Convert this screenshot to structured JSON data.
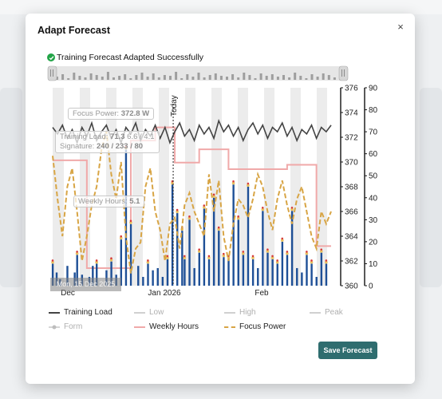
{
  "modal": {
    "title": "Adapt Forecast",
    "close_label": "×",
    "success_message": "Training Forecast Adapted Successfully",
    "save_button_label": "Save Forecast"
  },
  "colors": {
    "training_load": "#444444",
    "weekly_hours": "#f0a9a9",
    "focus_power": "#d8a545",
    "bars": "#1e4f96",
    "success": "#22a447",
    "save_button": "#2f6d6f"
  },
  "tooltips": {
    "focus_power_label": "Focus Power:",
    "focus_power_value": "372.8 W",
    "training_load_label": "Training Load:",
    "training_load_value": "71.3",
    "training_load_rest": "6.6 / 4.1",
    "signature_label": "Signature:",
    "signature_value": "240 / 233 / 80",
    "weekly_hours_label": "Weekly Hours:",
    "weekly_hours_value": "5.1",
    "date": "Mon, 15 Dec 2025",
    "today_marker": "Today"
  },
  "chart_data": {
    "type": "line",
    "x_ticks": [
      "Dec",
      "Jan 2026",
      "Feb"
    ],
    "y_axis_power": {
      "ticks": [
        360,
        362,
        364,
        366,
        368,
        370,
        372,
        374,
        376
      ],
      "range": [
        360,
        376
      ]
    },
    "y_axis_load": {
      "ticks": [
        0,
        10,
        20,
        30,
        40,
        50,
        60,
        70,
        80,
        90
      ],
      "range": [
        0,
        90
      ]
    },
    "legend": [
      {
        "name": "Training Load",
        "style": "line",
        "active": true
      },
      {
        "name": "Low",
        "style": "line",
        "active": false
      },
      {
        "name": "High",
        "style": "line",
        "active": false
      },
      {
        "name": "Peak",
        "style": "line",
        "active": false
      },
      {
        "name": "Form",
        "style": "dot",
        "active": false
      },
      {
        "name": "Weekly Hours",
        "style": "line",
        "active": true
      },
      {
        "name": "Focus Power",
        "style": "dash",
        "active": true
      }
    ],
    "series": [
      {
        "name": "Training Load",
        "axis": "load",
        "values": [
          72,
          69,
          73,
          67,
          71,
          65,
          72,
          68,
          74,
          66,
          70,
          73,
          67,
          71,
          65,
          72,
          69,
          74,
          66,
          71,
          68,
          73,
          67,
          72,
          65,
          70,
          74,
          68,
          71,
          66,
          73,
          69,
          72,
          67,
          75,
          70,
          73,
          68,
          72,
          66,
          71,
          74,
          69,
          73,
          67,
          72,
          70,
          74,
          68,
          72,
          66,
          71,
          69,
          73,
          67,
          72,
          70,
          73
        ]
      },
      {
        "name": "Weekly Hours",
        "axis": "load",
        "values": [
          57,
          57,
          57,
          57,
          57,
          57,
          57,
          8,
          8,
          8,
          8,
          8,
          8,
          8,
          8,
          8,
          66,
          66,
          66,
          66,
          66,
          72,
          72,
          72,
          72,
          56,
          56,
          56,
          56,
          56,
          62,
          62,
          62,
          62,
          62,
          62,
          53,
          53,
          53,
          53,
          53,
          53,
          53,
          53,
          53,
          53,
          53,
          53,
          55,
          55,
          55,
          55,
          55,
          55,
          18,
          18,
          18,
          18
        ]
      },
      {
        "name": "Focus Power",
        "axis": "power",
        "values": [
          370.5,
          367,
          364,
          368,
          369.5,
          366,
          362,
          364,
          366.5,
          368,
          371,
          372.5,
          369,
          367,
          370,
          364,
          361,
          363,
          363.5,
          368,
          369.5,
          366,
          364.5,
          362,
          365,
          365.5,
          363,
          366.5,
          367.5,
          366,
          365,
          364,
          369,
          366,
          368.5,
          364,
          362,
          365,
          367,
          366.5,
          365.5,
          367,
          369,
          368,
          366,
          364.5,
          367,
          368.5,
          366.5,
          365,
          367,
          368,
          366,
          364,
          363,
          366,
          365,
          366
        ]
      }
    ],
    "bars": [
      {
        "x": 0.0,
        "v": 10
      },
      {
        "x": 0.8,
        "v": 6
      },
      {
        "x": 1.5,
        "v": 3
      },
      {
        "x": 3.0,
        "v": 9
      },
      {
        "x": 4.5,
        "v": 6
      },
      {
        "x": 5.0,
        "v": 14
      },
      {
        "x": 6.0,
        "v": 5
      },
      {
        "x": 7.5,
        "v": 4
      },
      {
        "x": 8.2,
        "v": 9
      },
      {
        "x": 9.0,
        "v": 10
      },
      {
        "x": 11.0,
        "v": 7
      },
      {
        "x": 12.0,
        "v": 11
      },
      {
        "x": 13.0,
        "v": 5
      },
      {
        "x": 14.0,
        "v": 21
      },
      {
        "x": 15.0,
        "v": 62
      },
      {
        "x": 16.0,
        "v": 28
      },
      {
        "x": 17.5,
        "v": 9
      },
      {
        "x": 18.5,
        "v": 4
      },
      {
        "x": 19.5,
        "v": 10
      },
      {
        "x": 20.5,
        "v": 7
      },
      {
        "x": 21.5,
        "v": 8
      },
      {
        "x": 22.5,
        "v": 4
      },
      {
        "x": 23.5,
        "v": 12
      },
      {
        "x": 24.5,
        "v": 46
      },
      {
        "x": 25.5,
        "v": 33
      },
      {
        "x": 26.5,
        "v": 25
      },
      {
        "x": 27.0,
        "v": 12
      },
      {
        "x": 28.0,
        "v": 30
      },
      {
        "x": 29.0,
        "v": 8
      },
      {
        "x": 30.0,
        "v": 15
      },
      {
        "x": 31.0,
        "v": 35
      },
      {
        "x": 32.0,
        "v": 12
      },
      {
        "x": 33.0,
        "v": 40
      },
      {
        "x": 34.0,
        "v": 25
      },
      {
        "x": 35.0,
        "v": 13
      },
      {
        "x": 36.0,
        "v": 12
      },
      {
        "x": 37.0,
        "v": 46
      },
      {
        "x": 38.0,
        "v": 30
      },
      {
        "x": 39.0,
        "v": 14
      },
      {
        "x": 40.0,
        "v": 45
      },
      {
        "x": 41.0,
        "v": 12
      },
      {
        "x": 42.0,
        "v": 8
      },
      {
        "x": 43.0,
        "v": 34
      },
      {
        "x": 44.0,
        "v": 15
      },
      {
        "x": 45.0,
        "v": 12
      },
      {
        "x": 46.0,
        "v": 10
      },
      {
        "x": 47.0,
        "v": 20
      },
      {
        "x": 48.0,
        "v": 14
      },
      {
        "x": 49.0,
        "v": 34
      },
      {
        "x": 50.0,
        "v": 8
      },
      {
        "x": 51.0,
        "v": 6
      },
      {
        "x": 52.0,
        "v": 14
      },
      {
        "x": 53.0,
        "v": 10
      },
      {
        "x": 54.0,
        "v": 4
      },
      {
        "x": 55.0,
        "v": 15
      },
      {
        "x": 56.0,
        "v": 10
      }
    ],
    "today_index": 25
  }
}
